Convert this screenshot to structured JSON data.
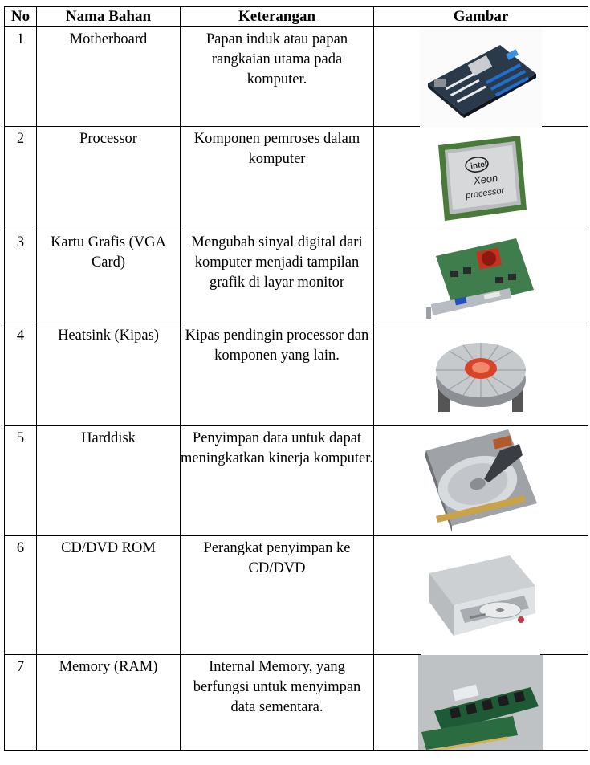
{
  "table": {
    "headers": [
      "No",
      "Nama Bahan",
      "Keterangan",
      "Gambar"
    ],
    "rows": [
      {
        "no": "1",
        "nama": "Motherboard",
        "keterangan": "Papan induk atau papan rangkaian utama pada komputer.",
        "gambar": "motherboard-photo"
      },
      {
        "no": "2",
        "nama": "Processor",
        "keterangan": "Komponen pemroses dalam komputer",
        "gambar": "processor-photo",
        "chip_text": [
          "intel",
          "Xeon",
          "processor"
        ]
      },
      {
        "no": "3",
        "nama": "Kartu Grafis (VGA Card)",
        "keterangan": "Mengubah sinyal digital dari komputer menjadi tampilan grafik di layar monitor",
        "gambar": "vga-card-photo"
      },
      {
        "no": "4",
        "nama": "Heatsink (Kipas)",
        "keterangan": "Kipas pendingin processor dan komponen yang lain.",
        "gambar": "heatsink-photo"
      },
      {
        "no": "5",
        "nama": "Harddisk",
        "keterangan": "Penyimpan data untuk dapat meningkatkan kinerja komputer.",
        "gambar": "harddisk-photo"
      },
      {
        "no": "6",
        "nama": "CD/DVD ROM",
        "keterangan": "Perangkat penyimpan ke CD/DVD",
        "gambar": "cd-dvd-rom-photo"
      },
      {
        "no": "7",
        "nama": "Memory (RAM)",
        "keterangan": "Internal Memory, yang berfungsi untuk menyimpan data sementara.",
        "gambar": "ram-photo"
      }
    ]
  }
}
